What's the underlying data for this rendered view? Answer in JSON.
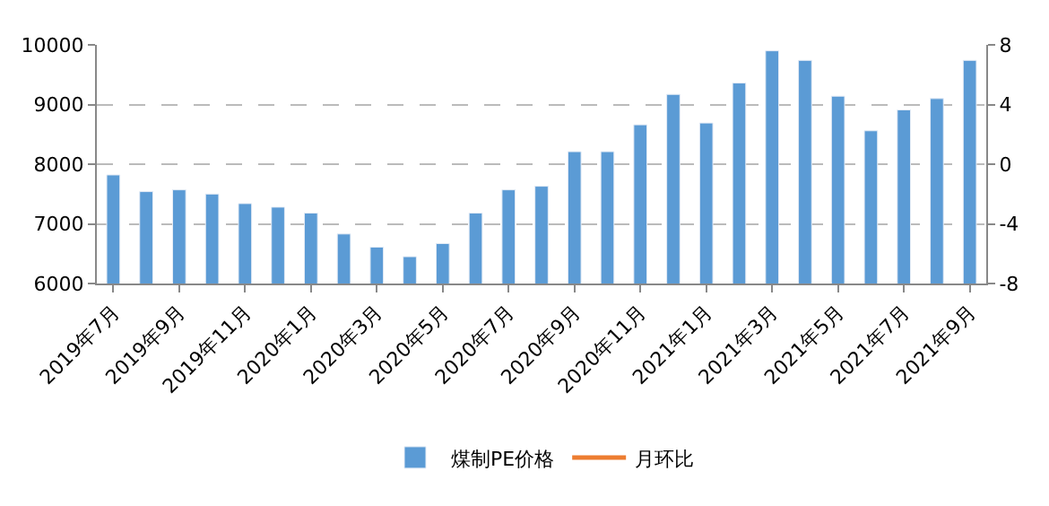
{
  "chart_data": {
    "type": "bar",
    "categories": [
      "2019年7月",
      null,
      "2019年9月",
      null,
      "2019年11月",
      null,
      "2020年1月",
      null,
      "2020年3月",
      null,
      "2020年5月",
      null,
      "2020年7月",
      null,
      "2020年9月",
      null,
      "2020年11月",
      null,
      "2021年1月",
      null,
      "2021年3月",
      null,
      "2021年5月",
      null,
      "2021年7月",
      null,
      "2021年9月"
    ],
    "series": [
      {
        "name": "煤制PE价格",
        "color": "#5b9bd5",
        "values": [
          7820,
          7540,
          7570,
          7500,
          7340,
          7280,
          7180,
          6830,
          6610,
          6450,
          6670,
          7180,
          7570,
          7630,
          8210,
          8210,
          8660,
          9170,
          8690,
          9360,
          9900,
          9740,
          9140,
          8560,
          8910,
          9100,
          9740
        ]
      },
      {
        "name": "月环比",
        "color": "#ed7d31",
        "type": "line",
        "axis": "y2",
        "values": [
          null,
          null,
          null,
          null,
          null,
          null,
          null,
          null,
          null,
          null,
          null,
          null,
          null,
          null,
          null,
          null,
          null,
          null,
          null,
          null,
          null,
          null,
          null,
          null,
          null,
          null,
          null
        ]
      }
    ],
    "ylim": [
      6000,
      10000
    ],
    "yticks": [
      6000,
      7000,
      8000,
      9000,
      10000
    ],
    "y2lim": [
      -8,
      8
    ],
    "y2ticks": [
      -8,
      -4,
      0,
      4,
      8
    ],
    "grid": "y",
    "legend": "bottom"
  }
}
